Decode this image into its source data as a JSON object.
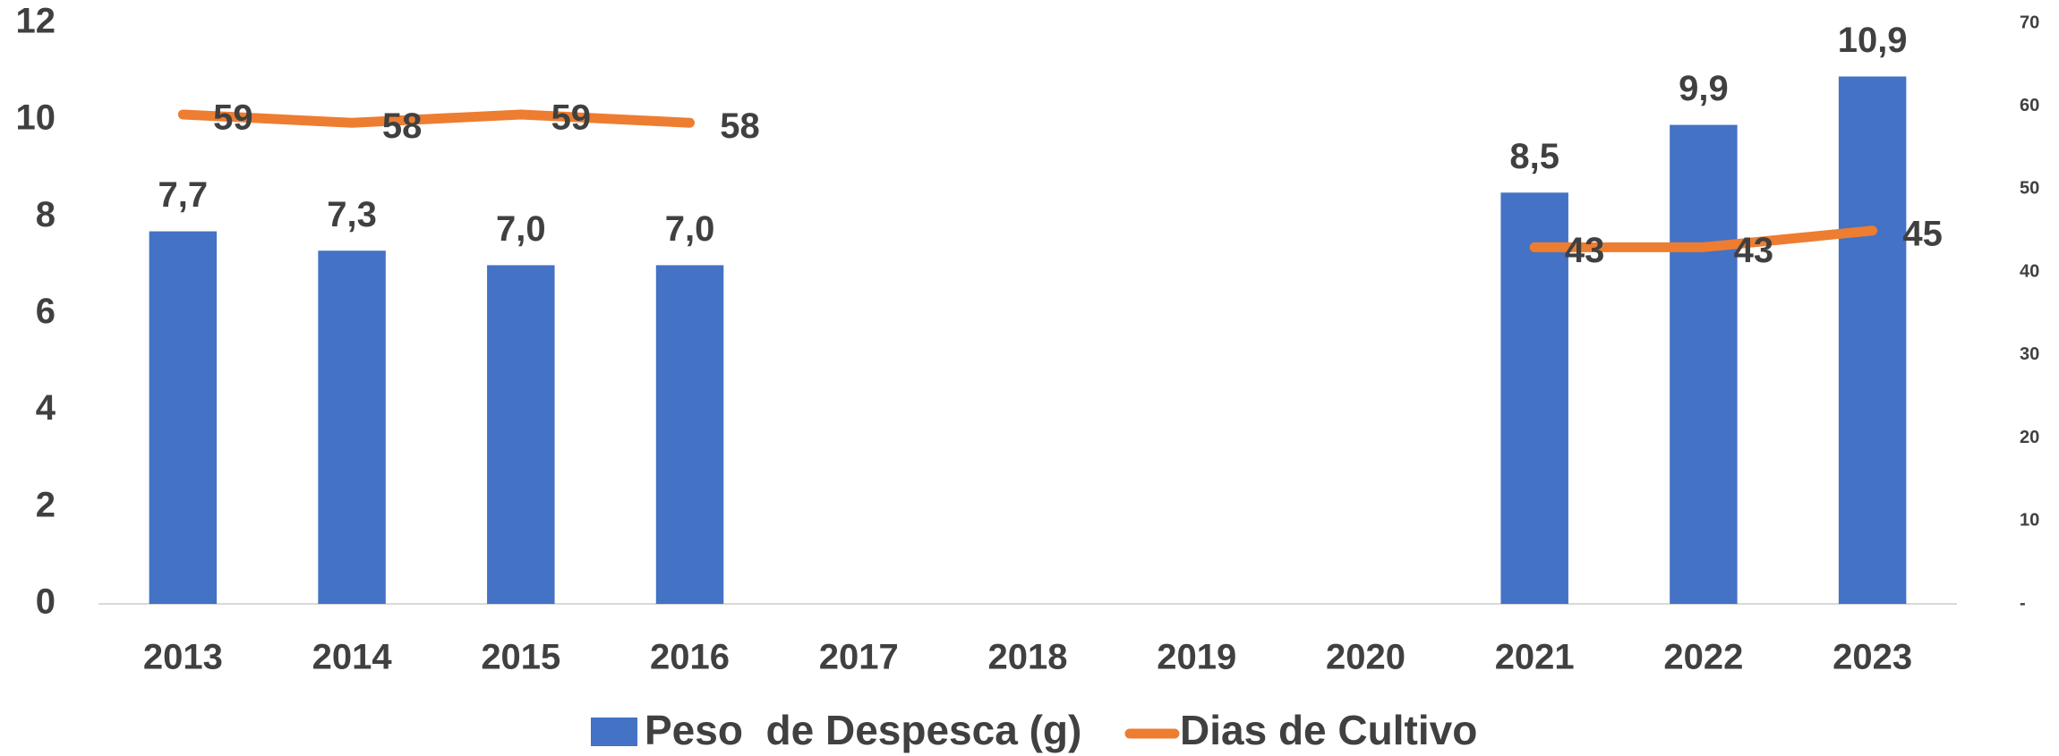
{
  "chart_data": {
    "type": "bar_line",
    "categories": [
      "2013",
      "2014",
      "2015",
      "2016",
      "2017",
      "2018",
      "2019",
      "2020",
      "2021",
      "2022",
      "2023"
    ],
    "series": [
      {
        "name": "Peso  de Despesca (g)",
        "type": "bar",
        "color": "#4472C4",
        "values": [
          7.7,
          7.3,
          7.0,
          7.0,
          null,
          null,
          null,
          null,
          8.5,
          9.9,
          10.9
        ],
        "value_labels": [
          "7,7",
          "7,3",
          "7,0",
          "7,0",
          null,
          null,
          null,
          null,
          "8,5",
          "9,9",
          "10,9"
        ]
      },
      {
        "name": "Dias de Cultivo",
        "type": "line",
        "axis": "y2",
        "color": "#ED7D31",
        "values": [
          59,
          58,
          59,
          58,
          null,
          null,
          null,
          null,
          43,
          43,
          45
        ]
      }
    ],
    "ylim": [
      0,
      12
    ],
    "yticks": [
      0,
      2,
      4,
      6,
      8,
      10,
      12
    ],
    "y2lim": [
      0,
      70
    ],
    "y2ticks": [
      {
        "value": 0,
        "label": "-"
      },
      10,
      20,
      30,
      40,
      50,
      60,
      70
    ],
    "legend": "bottom"
  }
}
